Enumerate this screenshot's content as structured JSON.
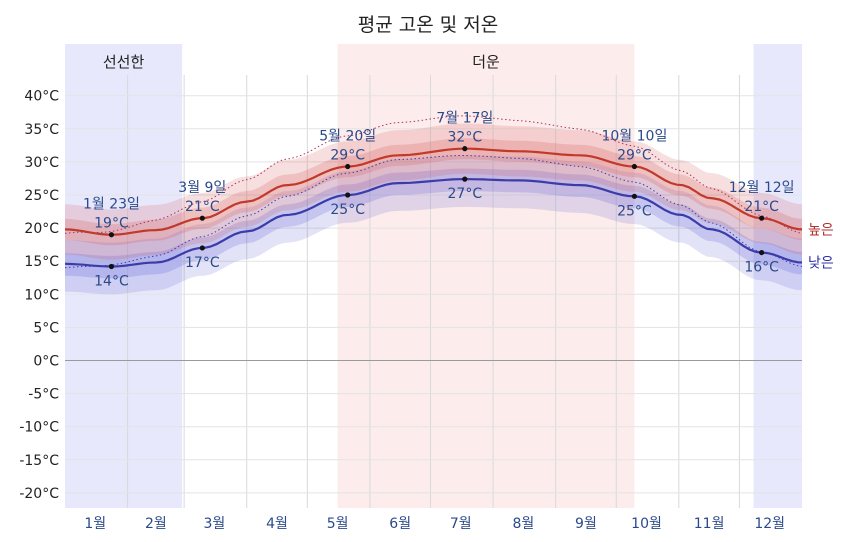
{
  "chart_data": {
    "type": "line",
    "title": "평균 고온 및 저온",
    "y_unit": "°C",
    "ylim": [
      -23,
      47
    ],
    "y_ticks": [
      40,
      35,
      30,
      25,
      20,
      15,
      10,
      5,
      0,
      -5,
      -10,
      -15,
      -20
    ],
    "y_tick_labels": [
      "40°C",
      "35°C",
      "30°C",
      "25°C",
      "20°C",
      "15°C",
      "10°C",
      "5°C",
      "0°C",
      "-5°C",
      "-10°C",
      "-15°C",
      "-20°C"
    ],
    "months": [
      "1월",
      "2월",
      "3월",
      "4월",
      "5월",
      "6월",
      "7월",
      "8월",
      "9월",
      "10월",
      "11월",
      "12월"
    ],
    "grid": true,
    "seasons": [
      {
        "label": "선선한",
        "start_day": 0,
        "end_day": 58,
        "color": "#e8e8fc"
      },
      {
        "label": "",
        "start_day": 341,
        "end_day": 365,
        "color": "#e8e8fc"
      },
      {
        "label": "더운",
        "start_day": 135,
        "end_day": 282,
        "color": "#fdecec"
      }
    ],
    "series": [
      {
        "name": "높은",
        "color": "#c0392b",
        "days": [
          0,
          23,
          45,
          68,
          90,
          110,
          140,
          165,
          198,
          225,
          255,
          282,
          305,
          320,
          345,
          365
        ],
        "values": [
          19.8,
          19,
          19.7,
          21.5,
          24,
          26.5,
          29.3,
          31.0,
          32,
          31.6,
          31.0,
          29.3,
          26.5,
          24.5,
          21.5,
          19.8
        ]
      },
      {
        "name": "낮은",
        "color": "#3c3ca8",
        "days": [
          0,
          23,
          45,
          68,
          90,
          110,
          140,
          165,
          198,
          225,
          255,
          282,
          305,
          320,
          345,
          365
        ],
        "values": [
          14.6,
          14.2,
          14.8,
          17,
          19.5,
          22.0,
          25,
          26.8,
          27.4,
          27.2,
          26.5,
          24.8,
          22,
          19.8,
          16.3,
          14.8
        ]
      }
    ],
    "annotations": [
      {
        "date": "1월 23일",
        "high": "19°C",
        "low": "14°C"
      },
      {
        "date": "3월 9일",
        "high": "21°C",
        "low": "17°C"
      },
      {
        "date": "5월 20일",
        "high": "29°C",
        "low": "25°C"
      },
      {
        "date": "7월 17일",
        "high": "32°C",
        "low": "27°C"
      },
      {
        "date": "10월 10일",
        "high": "29°C",
        "low": "25°C"
      },
      {
        "date": "12월 12일",
        "high": "21°C",
        "low": "16°C"
      }
    ]
  }
}
